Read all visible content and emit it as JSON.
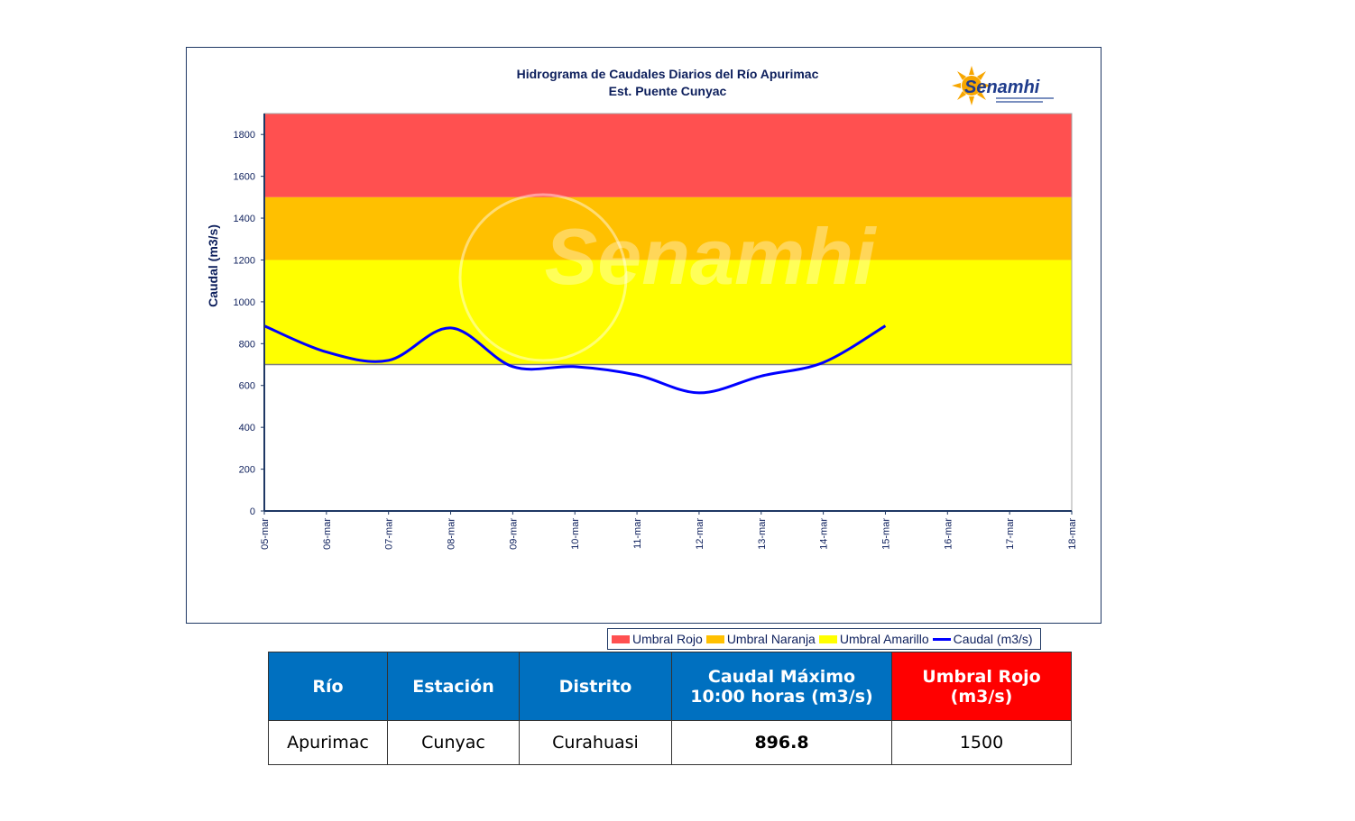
{
  "chart_data": {
    "type": "line",
    "title": "Hidrograma de Caudales Diarios del Río Apurimac",
    "subtitle": "Est. Puente Cunyac",
    "ylabel": "Caudal (m3/s)",
    "xlabel": "",
    "categories": [
      "05-mar",
      "06-mar",
      "07-mar",
      "08-mar",
      "09-mar",
      "10-mar",
      "11-mar",
      "12-mar",
      "13-mar",
      "14-mar",
      "15-mar",
      "16-mar",
      "17-mar",
      "18-mar"
    ],
    "ylim": [
      0,
      1900
    ],
    "yticks": [
      0,
      200,
      400,
      600,
      800,
      1000,
      1200,
      1400,
      1600,
      1800
    ],
    "thresholds": [
      {
        "name": "Umbral Rojo",
        "from": 1500,
        "to": 1900,
        "color": "#ff5050"
      },
      {
        "name": "Umbral Naranja",
        "from": 1200,
        "to": 1500,
        "color": "#ffc000"
      },
      {
        "name": "Umbral Amarillo",
        "from": 700,
        "to": 1200,
        "color": "#ffff00"
      }
    ],
    "series": [
      {
        "name": "Caudal (m3/s)",
        "color": "#0000ff",
        "x": [
          "05-mar",
          "06-mar",
          "07-mar",
          "08-mar",
          "09-mar",
          "10-mar",
          "11-mar",
          "12-mar",
          "13-mar",
          "14-mar",
          "15-mar"
        ],
        "values": [
          885,
          760,
          720,
          875,
          690,
          690,
          650,
          565,
          645,
          710,
          885
        ]
      }
    ],
    "grid": false,
    "legend_position": "bottom"
  },
  "watermark_text": "Senamhi",
  "logo": {
    "text": "Senamhi",
    "icon": "sun-icon"
  },
  "table": {
    "headers": [
      "Río",
      "Estación",
      "Distrito",
      "Caudal Máximo 10:00 horas (m3/s)",
      "Umbral Rojo (m3/s)"
    ],
    "header_colors": [
      "#0070c0",
      "#0070c0",
      "#0070c0",
      "#0070c0",
      "#ff0000"
    ],
    "rows": [
      [
        "Apurimac",
        "Cunyac",
        "Curahuasi",
        "896.8",
        "1500"
      ]
    ]
  }
}
